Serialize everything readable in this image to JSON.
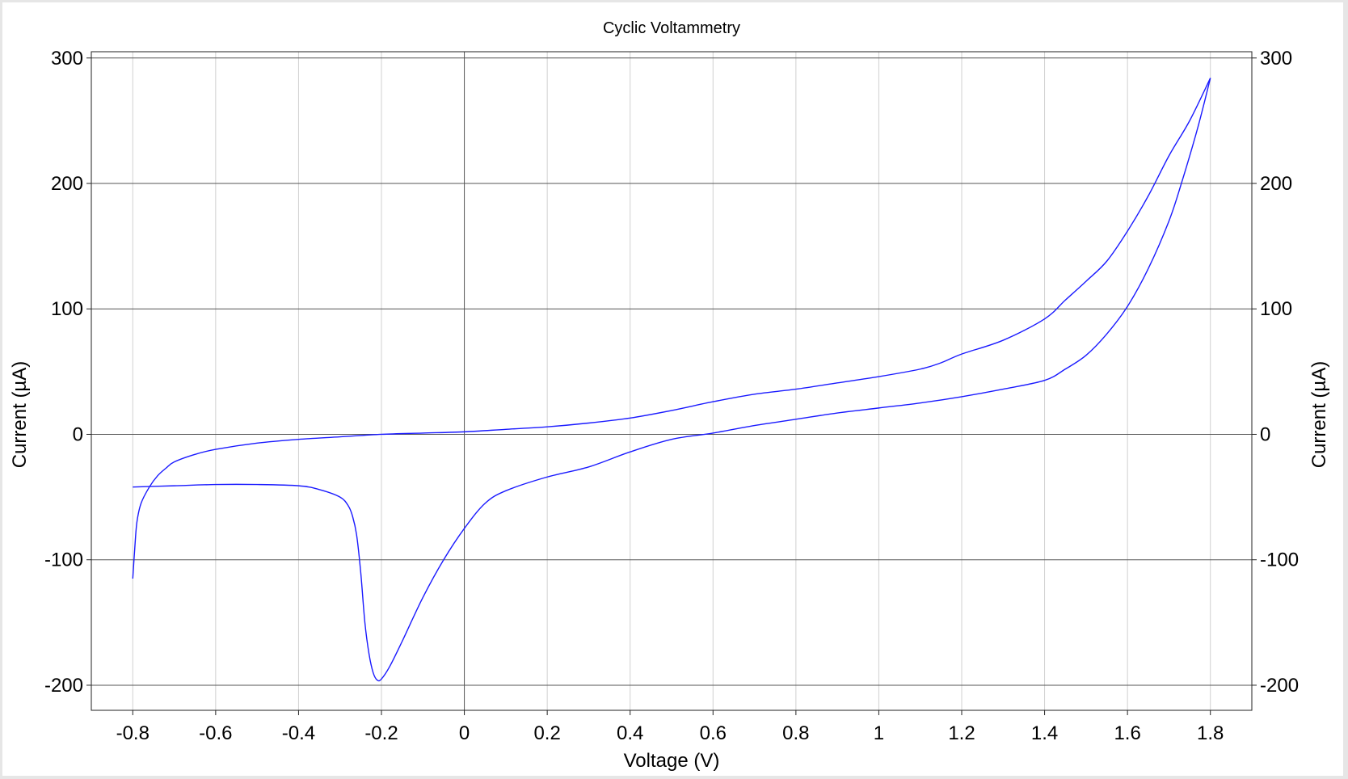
{
  "chart_data": {
    "type": "line",
    "title": "Cyclic Voltammetry",
    "xlabel": "Voltage (V)",
    "ylabel": "Current (µA)",
    "ylabel_right": "Current (µA)",
    "xlim": [
      -0.9,
      1.9
    ],
    "ylim": [
      -220,
      305
    ],
    "x_ticks": [
      -0.8,
      -0.6,
      -0.4,
      -0.2,
      0,
      0.2,
      0.4,
      0.6,
      0.8,
      1,
      1.2,
      1.4,
      1.6,
      1.8
    ],
    "x_tick_labels": [
      "-0.8",
      "-0.6",
      "-0.4",
      "-0.2",
      "0",
      "0.2",
      "0.4",
      "0.6",
      "0.8",
      "1",
      "1.2",
      "1.4",
      "1.6",
      "1.8"
    ],
    "y_ticks": [
      300,
      200,
      100,
      0,
      -100,
      -200
    ],
    "y_tick_labels": [
      "300",
      "200",
      "100",
      "0",
      "-100",
      "-200"
    ],
    "grid": true,
    "legend": "none",
    "colors": {
      "series": "#1a1aff",
      "major_grid": "#555555",
      "minor_grid": "#d0d0d0"
    },
    "series": [
      {
        "x": [
          -0.8,
          -0.795,
          -0.79,
          -0.78,
          -0.76,
          -0.74,
          -0.72,
          -0.7,
          -0.65,
          -0.6,
          -0.5,
          -0.4,
          -0.3,
          -0.2,
          -0.1,
          0.0,
          0.1,
          0.2,
          0.3,
          0.4,
          0.5,
          0.6,
          0.7,
          0.8,
          0.9,
          1.0,
          1.1,
          1.15,
          1.2,
          1.3,
          1.4,
          1.45,
          1.5,
          1.55,
          1.6,
          1.65,
          1.7,
          1.75,
          1.8
        ],
        "y": [
          -115,
          -90,
          -70,
          -55,
          -42,
          -33,
          -27,
          -22,
          -16,
          -12,
          -7,
          -4,
          -2,
          0,
          1,
          2,
          4,
          6,
          9,
          13,
          19,
          26,
          32,
          36,
          41,
          46,
          52,
          57,
          64,
          75,
          92,
          107,
          122,
          138,
          162,
          190,
          222,
          250,
          284
        ]
      },
      {
        "x": [
          1.8,
          1.77,
          1.73,
          1.7,
          1.65,
          1.6,
          1.55,
          1.5,
          1.45,
          1.4,
          1.3,
          1.2,
          1.1,
          1.0,
          0.9,
          0.8,
          0.7,
          0.6,
          0.5,
          0.4,
          0.3,
          0.2,
          0.1,
          0.05,
          0.0,
          -0.05,
          -0.1,
          -0.15,
          -0.18,
          -0.2,
          -0.21,
          -0.22,
          -0.23,
          -0.24,
          -0.25,
          -0.26,
          -0.27,
          -0.28,
          -0.3,
          -0.35,
          -0.4,
          -0.5,
          -0.6,
          -0.7,
          -0.8
        ],
        "y": [
          284,
          245,
          200,
          170,
          132,
          102,
          80,
          63,
          52,
          43,
          36,
          30,
          25,
          21,
          17,
          12,
          7,
          1,
          -4,
          -14,
          -26,
          -34,
          -45,
          -55,
          -75,
          -100,
          -130,
          -165,
          -185,
          -195,
          -196,
          -190,
          -175,
          -150,
          -110,
          -80,
          -65,
          -57,
          -50,
          -44,
          -41,
          -40,
          -40,
          -41,
          -42
        ]
      }
    ]
  }
}
